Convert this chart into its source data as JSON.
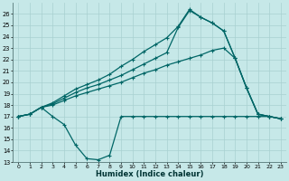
{
  "xlabel": "Humidex (Indice chaleur)",
  "background_color": "#c6e8e8",
  "grid_color": "#a8d0d0",
  "line_color": "#006666",
  "xlim": [
    -0.5,
    23.5
  ],
  "ylim": [
    13,
    27
  ],
  "yticks": [
    13,
    14,
    15,
    16,
    17,
    18,
    19,
    20,
    21,
    22,
    23,
    24,
    25,
    26
  ],
  "xticks": [
    0,
    1,
    2,
    3,
    4,
    5,
    6,
    7,
    8,
    9,
    10,
    11,
    12,
    13,
    14,
    15,
    16,
    17,
    18,
    19,
    20,
    21,
    22,
    23
  ],
  "series_dip_x": [
    0,
    1,
    2,
    3,
    4,
    5,
    6,
    7,
    8,
    9,
    10,
    11,
    12,
    13,
    14,
    15,
    16,
    17,
    18,
    19,
    20,
    21,
    22,
    23
  ],
  "series_dip_y": [
    17.0,
    17.2,
    17.8,
    17.0,
    16.3,
    14.5,
    13.3,
    13.2,
    13.6,
    17.0,
    17.0,
    17.0,
    17.0,
    17.0,
    17.0,
    17.0,
    17.0,
    17.0,
    17.0,
    17.0,
    17.0,
    17.0,
    17.0,
    16.8
  ],
  "series_low_x": [
    0,
    1,
    2,
    3,
    4,
    5,
    6,
    7,
    8,
    9,
    10,
    11,
    12,
    13,
    14,
    15,
    16,
    17,
    18,
    19,
    20,
    21,
    22,
    23
  ],
  "series_low_y": [
    17.0,
    17.2,
    17.8,
    18.0,
    18.4,
    18.8,
    19.1,
    19.4,
    19.7,
    20.0,
    20.4,
    20.8,
    21.1,
    21.5,
    21.8,
    22.1,
    22.4,
    22.8,
    23.0,
    22.1,
    19.5,
    17.2,
    17.0,
    16.8
  ],
  "series_mid_x": [
    0,
    1,
    2,
    3,
    4,
    5,
    6,
    7,
    8,
    9,
    10,
    11,
    12,
    13,
    14,
    15,
    16,
    17,
    18,
    19,
    20,
    21,
    22,
    23
  ],
  "series_mid_y": [
    17.0,
    17.2,
    17.8,
    18.1,
    18.6,
    19.1,
    19.5,
    19.8,
    20.2,
    20.6,
    21.1,
    21.6,
    22.1,
    22.6,
    24.8,
    26.3,
    25.7,
    25.2,
    24.5,
    22.1,
    19.5,
    17.2,
    17.0,
    16.8
  ],
  "series_high_x": [
    0,
    1,
    2,
    3,
    4,
    5,
    6,
    7,
    8,
    9,
    10,
    11,
    12,
    13,
    14,
    15,
    16,
    17,
    18,
    19,
    20,
    21,
    22,
    23
  ],
  "series_high_y": [
    17.0,
    17.2,
    17.8,
    18.2,
    18.8,
    19.4,
    19.8,
    20.2,
    20.7,
    21.4,
    22.0,
    22.7,
    23.3,
    23.9,
    24.9,
    26.4,
    25.7,
    25.2,
    24.5,
    22.1,
    19.5,
    17.2,
    17.0,
    16.8
  ],
  "line_width": 0.9,
  "marker_size": 2.5
}
